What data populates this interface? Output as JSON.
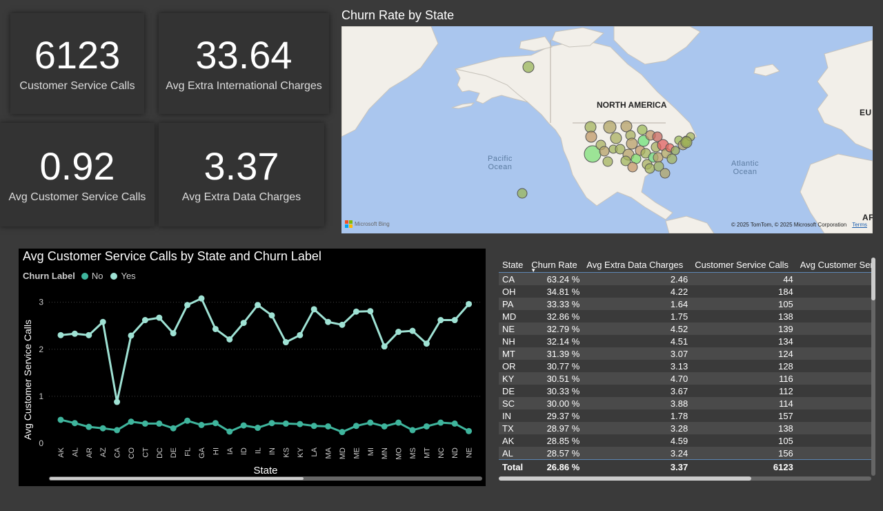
{
  "kpis": {
    "customer_service_calls": {
      "value": "6123",
      "label": "Customer Service Calls"
    },
    "avg_extra_intl": {
      "value": "33.64",
      "label": "Avg Extra International Charges"
    },
    "avg_cs_calls": {
      "value": "0.92",
      "label": "Avg Customer Service Calls"
    },
    "avg_extra_data": {
      "value": "3.37",
      "label": "Avg Extra Data Charges"
    }
  },
  "map": {
    "title": "Churn Rate by State",
    "labels": {
      "north_america": "NORTH AMERICA",
      "pacific": "Pacific\nOcean",
      "atlantic": "Atlantic\nOcean",
      "eu": "EU",
      "af": "AF"
    },
    "bing_logo": "Microsoft Bing",
    "copyright": "© 2025 TomTom, © 2025 Microsoft Corporation",
    "terms": "Terms"
  },
  "line_chart": {
    "title": "Avg Customer Service Calls by State and Churn Label",
    "legend_title": "Churn Label",
    "colors": {
      "No": "#3fb59d",
      "Yes": "#9fe2d4"
    }
  },
  "chart_data": {
    "type": "line",
    "title": "Avg Customer Service Calls by State and Churn Label",
    "xlabel": "State",
    "ylabel": "Avg Customer Service Calls",
    "ylim": [
      0,
      3.2
    ],
    "yticks": [
      0,
      1,
      2,
      3
    ],
    "grid": true,
    "legend": "top-left",
    "categories": [
      "AK",
      "AL",
      "AR",
      "AZ",
      "CA",
      "CO",
      "CT",
      "DC",
      "DE",
      "FL",
      "GA",
      "HI",
      "IA",
      "ID",
      "IL",
      "IN",
      "KS",
      "KY",
      "LA",
      "MA",
      "MD",
      "ME",
      "MI",
      "MN",
      "MO",
      "MS",
      "MT",
      "NC",
      "ND",
      "NE"
    ],
    "series": [
      {
        "name": "No",
        "values": [
          0.5,
          0.43,
          0.35,
          0.32,
          0.28,
          0.46,
          0.42,
          0.42,
          0.32,
          0.48,
          0.39,
          0.43,
          0.25,
          0.38,
          0.33,
          0.43,
          0.42,
          0.41,
          0.37,
          0.36,
          0.24,
          0.37,
          0.44,
          0.36,
          0.44,
          0.28,
          0.36,
          0.44,
          0.42,
          0.26
        ]
      },
      {
        "name": "Yes",
        "values": [
          2.3,
          2.33,
          2.3,
          2.58,
          0.88,
          2.29,
          2.62,
          2.67,
          2.34,
          2.94,
          3.08,
          2.43,
          2.21,
          2.56,
          2.94,
          2.72,
          2.15,
          2.3,
          2.85,
          2.58,
          2.52,
          2.8,
          2.81,
          2.06,
          2.37,
          2.39,
          2.12,
          2.62,
          2.62,
          2.96
        ]
      }
    ]
  },
  "table": {
    "columns": [
      "State",
      "Churn Rate",
      "Avg Extra Data Charges",
      "Customer Service Calls",
      "Avg Customer Serv"
    ],
    "rows": [
      [
        "CA",
        "63.24 %",
        "2.46",
        "44"
      ],
      [
        "OH",
        "34.81 %",
        "4.22",
        "184"
      ],
      [
        "PA",
        "33.33 %",
        "1.64",
        "105"
      ],
      [
        "MD",
        "32.86 %",
        "1.75",
        "138"
      ],
      [
        "NE",
        "32.79 %",
        "4.52",
        "139"
      ],
      [
        "NH",
        "32.14 %",
        "4.51",
        "134"
      ],
      [
        "MT",
        "31.39 %",
        "3.07",
        "124"
      ],
      [
        "OR",
        "30.77 %",
        "3.13",
        "128"
      ],
      [
        "KY",
        "30.51 %",
        "4.70",
        "116"
      ],
      [
        "DE",
        "30.33 %",
        "3.67",
        "112"
      ],
      [
        "SC",
        "30.00 %",
        "3.88",
        "114"
      ],
      [
        "IN",
        "29.37 %",
        "1.78",
        "157"
      ],
      [
        "TX",
        "28.97 %",
        "3.28",
        "138"
      ],
      [
        "AK",
        "28.85 %",
        "4.59",
        "105"
      ],
      [
        "AL",
        "28.57 %",
        "3.24",
        "156"
      ]
    ],
    "total": [
      "Total",
      "26.86 %",
      "3.37",
      "6123"
    ]
  }
}
